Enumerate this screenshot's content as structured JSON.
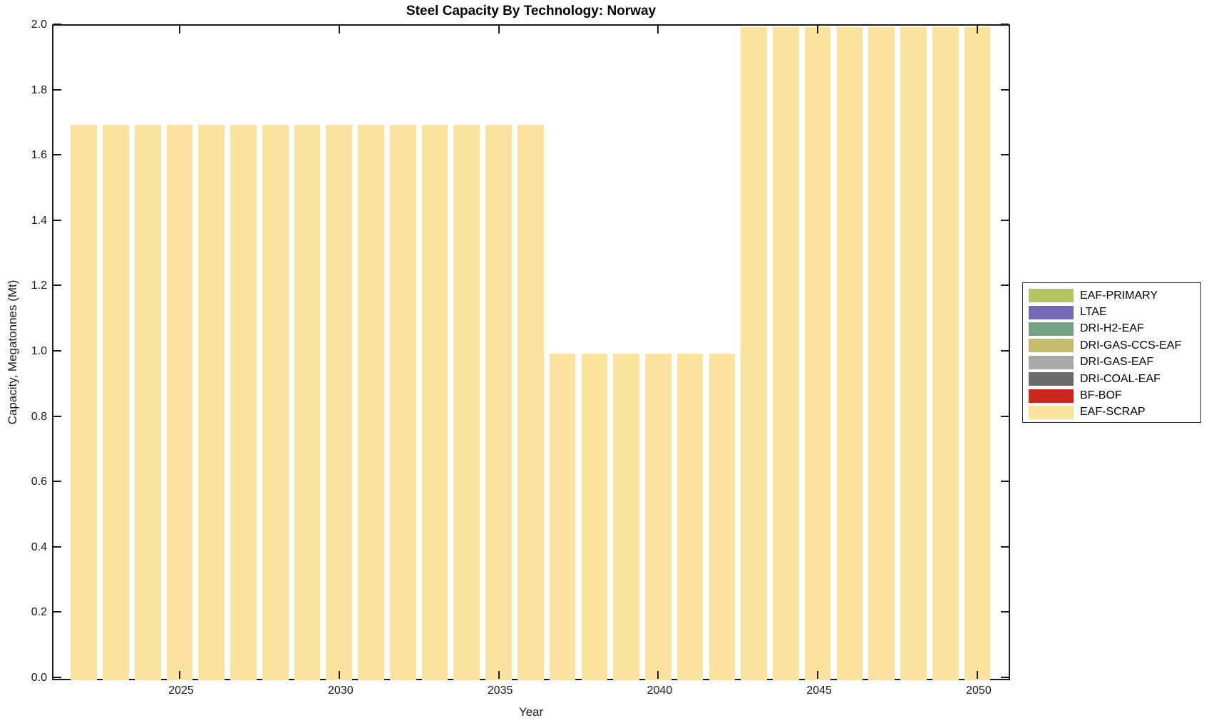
{
  "figure": {
    "background": "#ffffff",
    "axis_color": "#1a1a1a"
  },
  "chart_data": {
    "type": "bar",
    "stacked": true,
    "title": "Steel Capacity By Technology: Norway",
    "xlabel": "Year",
    "ylabel": "Capacity, Megatonnes (Mt)",
    "xlim": [
      2021.0,
      2050.94
    ],
    "ylim": [
      0,
      2.0
    ],
    "xticks": [
      2025,
      2030,
      2035,
      2040,
      2045,
      2050
    ],
    "xtick_labels": [
      "2025",
      "2030",
      "2035",
      "2040",
      "2045",
      "2050"
    ],
    "yticks": [
      0,
      0.2,
      0.4,
      0.6,
      0.8,
      1.0,
      1.2,
      1.4,
      1.6,
      1.8,
      2.0
    ],
    "ytick_labels": [
      "0.0",
      "0.2",
      "0.4",
      "0.6",
      "0.8",
      "1.0",
      "1.2",
      "1.4",
      "1.6",
      "1.8",
      "2.0"
    ],
    "grid": false,
    "legend_position": "right-outside",
    "bar_rel_width": 0.82,
    "years": [
      2022,
      2023,
      2024,
      2025,
      2026,
      2027,
      2028,
      2029,
      2030,
      2031,
      2032,
      2033,
      2034,
      2035,
      2036,
      2037,
      2038,
      2039,
      2040,
      2041,
      2042,
      2043,
      2044,
      2045,
      2046,
      2047,
      2048,
      2049,
      2050
    ],
    "series": [
      {
        "name": "EAF-SCRAP",
        "color": "#fbe39d",
        "values": [
          1.7,
          1.7,
          1.7,
          1.7,
          1.7,
          1.7,
          1.7,
          1.7,
          1.7,
          1.7,
          1.7,
          1.7,
          1.7,
          1.7,
          1.7,
          1.0,
          1.0,
          1.0,
          1.0,
          1.0,
          1.0,
          2.0,
          2.0,
          2.0,
          2.0,
          2.0,
          2.0,
          2.0,
          2.0
        ]
      }
    ],
    "legend": [
      {
        "label": "EAF-PRIMARY",
        "color": "#b6c363"
      },
      {
        "label": "LTAE",
        "color": "#7569ba"
      },
      {
        "label": "DRI-H2-EAF",
        "color": "#76a185"
      },
      {
        "label": "DRI-GAS-CCS-EAF",
        "color": "#c4bb6d"
      },
      {
        "label": "DRI-GAS-EAF",
        "color": "#a9a9a9"
      },
      {
        "label": "DRI-COAL-EAF",
        "color": "#6b6b6b"
      },
      {
        "label": "BF-BOF",
        "color": "#cb271a"
      },
      {
        "label": "EAF-SCRAP",
        "color": "#fbe39d"
      }
    ]
  }
}
